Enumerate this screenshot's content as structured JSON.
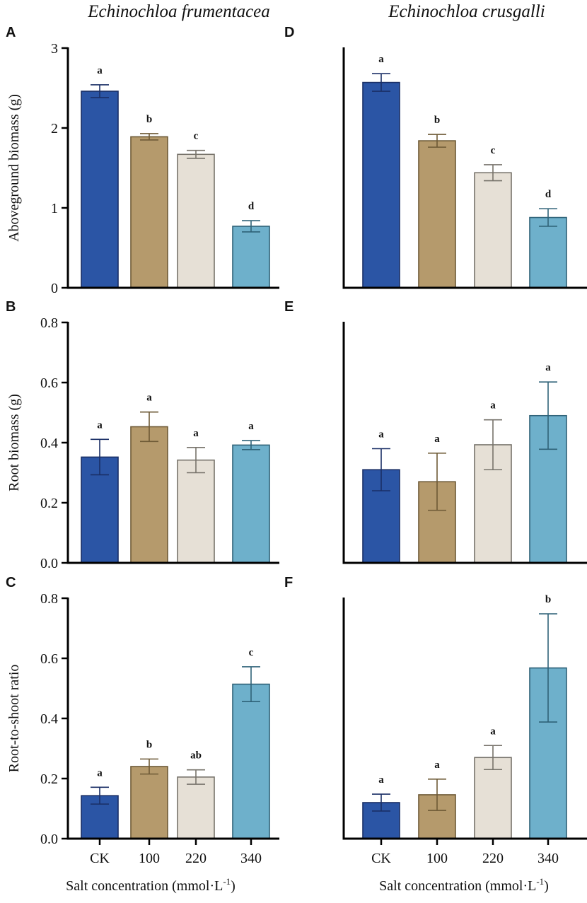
{
  "colors": {
    "bars": [
      "#2b55a5",
      "#b59a6c",
      "#e6e0d6",
      "#6eb0cb"
    ],
    "outlines": [
      "#1a2f66",
      "#6e5a36",
      "#77736b",
      "#2f6278"
    ],
    "axis": "#000000",
    "text": "#111111"
  },
  "figure": {
    "col_titles": [
      "Echinochloa frumentacea",
      "Echinochloa crusgalli"
    ],
    "xlabel_text": "Salt concentration (mmol·L",
    "xlabel_sup": "-1",
    "xlabel_close": ")"
  },
  "chart_data": [
    {
      "type": "bar",
      "panel": "A",
      "row": 0,
      "col": 0,
      "ylabel": "Aboveground biomass (g)",
      "categories": [
        "CK",
        "100",
        "220",
        "340"
      ],
      "values": [
        2.46,
        1.89,
        1.67,
        0.77
      ],
      "errors": [
        0.08,
        0.04,
        0.05,
        0.07
      ],
      "letters": [
        "a",
        "b",
        "c",
        "d"
      ],
      "ylim": [
        0,
        3
      ],
      "yticks": [
        "0",
        "1",
        "2",
        "3"
      ],
      "ytick_values": [
        0,
        1,
        2,
        3
      ]
    },
    {
      "type": "bar",
      "panel": "D",
      "row": 0,
      "col": 1,
      "ylabel": "",
      "categories": [
        "CK",
        "100",
        "220",
        "340"
      ],
      "values": [
        2.57,
        1.84,
        1.44,
        0.88
      ],
      "errors": [
        0.11,
        0.08,
        0.1,
        0.11
      ],
      "letters": [
        "a",
        "b",
        "c",
        "d"
      ],
      "ylim": [
        0,
        3
      ],
      "yticks": [],
      "ytick_values": []
    },
    {
      "type": "bar",
      "panel": "B",
      "row": 1,
      "col": 0,
      "ylabel": "Root biomass (g)",
      "categories": [
        "CK",
        "100",
        "220",
        "340"
      ],
      "values": [
        0.352,
        0.453,
        0.342,
        0.392
      ],
      "errors": [
        0.059,
        0.049,
        0.042,
        0.015
      ],
      "letters": [
        "a",
        "a",
        "a",
        "a"
      ],
      "ylim": [
        0,
        0.8
      ],
      "yticks": [
        "0.0",
        "0.2",
        "0.4",
        "0.6",
        "0.8"
      ],
      "ytick_values": [
        0,
        0.2,
        0.4,
        0.6,
        0.8
      ]
    },
    {
      "type": "bar",
      "panel": "E",
      "row": 1,
      "col": 1,
      "ylabel": "",
      "categories": [
        "CK",
        "100",
        "220",
        "340"
      ],
      "values": [
        0.31,
        0.27,
        0.393,
        0.49
      ],
      "errors": [
        0.07,
        0.095,
        0.083,
        0.112
      ],
      "letters": [
        "a",
        "a",
        "a",
        "a"
      ],
      "ylim": [
        0,
        0.8
      ],
      "yticks": [],
      "ytick_values": []
    },
    {
      "type": "bar",
      "panel": "C",
      "row": 2,
      "col": 0,
      "ylabel": "Root-to-shoot ratio",
      "categories": [
        "CK",
        "100",
        "220",
        "340"
      ],
      "values": [
        0.143,
        0.24,
        0.205,
        0.514
      ],
      "errors": [
        0.028,
        0.025,
        0.024,
        0.058
      ],
      "letters": [
        "a",
        "b",
        "ab",
        "c"
      ],
      "ylim": [
        0,
        0.8
      ],
      "yticks": [
        "0.0",
        "0.2",
        "0.4",
        "0.6",
        "0.8"
      ],
      "ytick_values": [
        0,
        0.2,
        0.4,
        0.6,
        0.8
      ]
    },
    {
      "type": "bar",
      "panel": "F",
      "row": 2,
      "col": 1,
      "ylabel": "",
      "categories": [
        "CK",
        "100",
        "220",
        "340"
      ],
      "values": [
        0.12,
        0.146,
        0.27,
        0.568
      ],
      "errors": [
        0.028,
        0.052,
        0.04,
        0.18
      ],
      "letters": [
        "a",
        "a",
        "a",
        "b"
      ],
      "ylim": [
        0,
        0.8
      ],
      "yticks": [],
      "ytick_values": []
    }
  ]
}
